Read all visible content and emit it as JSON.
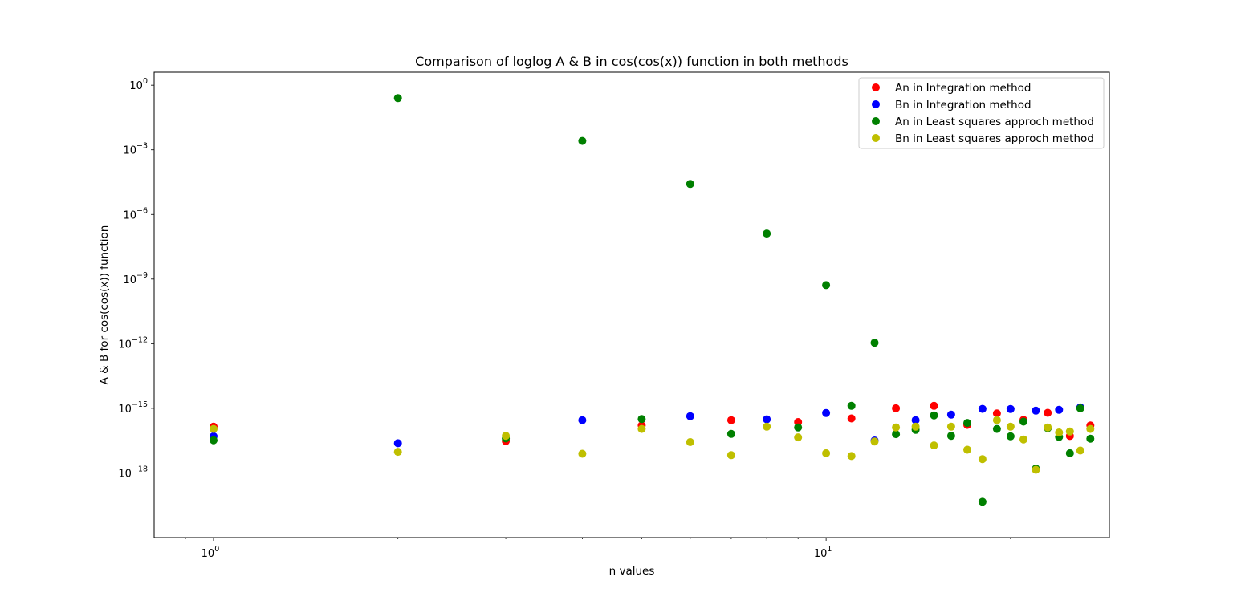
{
  "chart_data": {
    "type": "scatter",
    "title": "Comparison of loglog A & B in cos(cos(x)) function in both methods",
    "xlabel": "n values",
    "ylabel": "A & B for cos(cos(x)) function",
    "xscale": "log",
    "yscale": "log",
    "xlim": [
      0.8,
      29
    ],
    "ylim": [
      1e-21,
      4
    ],
    "x_ticks": [
      {
        "value": 1,
        "label": "10^0",
        "base": "10",
        "exp": "0"
      },
      {
        "value": 10,
        "label": "10^1",
        "base": "10",
        "exp": "1"
      }
    ],
    "y_ticks": [
      {
        "value": 1,
        "label": "10^0",
        "base": "10",
        "exp": "0"
      },
      {
        "value": 0.001,
        "label": "10^−3",
        "base": "10",
        "exp": "−3"
      },
      {
        "value": 1e-06,
        "label": "10^−6",
        "base": "10",
        "exp": "−6"
      },
      {
        "value": 1e-09,
        "label": "10^−9",
        "base": "10",
        "exp": "−9"
      },
      {
        "value": 1e-12,
        "label": "10^−12",
        "base": "10",
        "exp": "−12"
      },
      {
        "value": 1e-15,
        "label": "10^−15",
        "base": "10",
        "exp": "−15"
      },
      {
        "value": 1e-18,
        "label": "10^−18",
        "base": "10",
        "exp": "−18"
      }
    ],
    "legend_position": "top-right",
    "grid": false,
    "series": [
      {
        "name": "An in Integration method",
        "color": "#ff0000",
        "x": [
          1,
          3,
          5,
          7,
          9,
          11,
          13,
          15,
          17,
          19,
          21,
          23,
          25,
          27
        ],
        "y": [
          1.4e-16,
          3e-17,
          1.6e-16,
          2.8e-16,
          2.3e-16,
          3.4e-16,
          1e-15,
          1.3e-15,
          1.7e-16,
          5.8e-16,
          2.9e-16,
          6.2e-16,
          5.2e-17,
          1.6e-16
        ]
      },
      {
        "name": "Bn in Integration method",
        "color": "#0000ff",
        "x": [
          1,
          2,
          4,
          6,
          8,
          10,
          12,
          14,
          16,
          18,
          20,
          22,
          24,
          26
        ],
        "y": [
          5e-17,
          2.4e-17,
          2.8e-16,
          4.3e-16,
          3.1e-16,
          6.1e-16,
          3.2e-17,
          2.8e-16,
          5.1e-16,
          9.4e-16,
          9.3e-16,
          7.8e-16,
          8.5e-16,
          1.1e-15
        ]
      },
      {
        "name": "An in Least squares approch method",
        "color": "#008000",
        "x": [
          1,
          2,
          3,
          4,
          5,
          6,
          7,
          8,
          9,
          10,
          11,
          12,
          13,
          14,
          15,
          16,
          17,
          18,
          19,
          20,
          21,
          22,
          23,
          24,
          25,
          26,
          27
        ],
        "y": [
          3.3e-17,
          0.25,
          4e-17,
          0.0026,
          3.2e-16,
          2.6e-05,
          6.5e-17,
          1.3e-07,
          1.3e-16,
          5.2e-10,
          1.3e-15,
          1.1e-12,
          6.3e-17,
          1e-16,
          4.7e-16,
          5.3e-17,
          2.1e-16,
          4.6e-20,
          1.1e-16,
          5e-17,
          2.4e-16,
          1.6e-18,
          1.2e-16,
          4.7e-17,
          8.2e-18,
          1e-15,
          3.9e-17
        ]
      },
      {
        "name": "Bn in Least squares approch method",
        "color": "#bfbf00",
        "x": [
          1,
          2,
          3,
          4,
          5,
          6,
          7,
          8,
          9,
          10,
          11,
          12,
          13,
          14,
          15,
          16,
          17,
          18,
          19,
          20,
          21,
          22,
          23,
          24,
          25,
          26,
          27
        ],
        "y": [
          1.1e-16,
          9.6e-18,
          5.3e-17,
          7.8e-18,
          1.1e-16,
          2.7e-17,
          6.7e-18,
          1.4e-16,
          4.5e-17,
          8.2e-18,
          6.1e-18,
          2.9e-17,
          1.3e-16,
          1.4e-16,
          1.9e-17,
          1.4e-16,
          1.2e-17,
          4.4e-18,
          2.8e-16,
          1.4e-16,
          3.6e-17,
          1.4e-18,
          1.3e-16,
          7.6e-17,
          8.4e-17,
          1.1e-17,
          1.1e-16
        ]
      }
    ]
  }
}
